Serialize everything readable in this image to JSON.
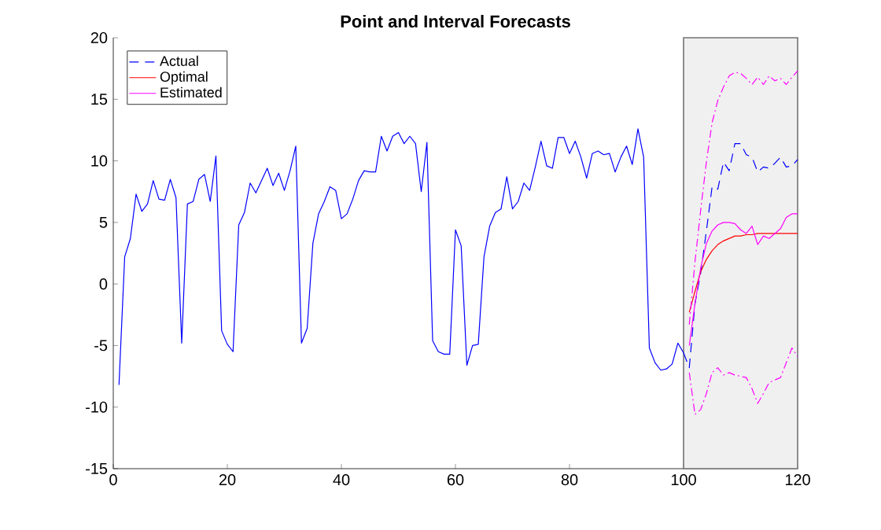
{
  "chart_data": {
    "type": "line",
    "title": "Point and Interval Forecasts",
    "xlim": [
      0,
      120
    ],
    "ylim": [
      -15,
      20
    ],
    "xticks": [
      0,
      20,
      40,
      60,
      80,
      100,
      120
    ],
    "yticks": [
      -15,
      -10,
      -5,
      0,
      5,
      10,
      15,
      20
    ],
    "legend": "top left",
    "grid": false,
    "bands": [
      {
        "axis": "x",
        "from": 100,
        "to": 120,
        "color": "#f0f0f0"
      }
    ],
    "series": [
      {
        "color": "#0000ff",
        "line_style": "solid",
        "x": [
          1,
          2,
          3,
          4,
          5,
          6,
          7,
          8,
          9,
          10,
          11,
          12,
          13,
          14,
          15,
          16,
          17,
          18,
          19,
          20,
          21,
          22,
          23,
          24,
          25,
          26,
          27,
          28,
          29,
          30,
          31,
          32,
          33,
          34,
          35,
          36,
          37,
          38,
          39,
          40,
          41,
          42,
          43,
          44,
          45,
          46,
          47,
          48,
          49,
          50,
          51,
          52,
          53,
          54,
          55,
          56,
          57,
          58,
          59,
          60,
          61,
          62,
          63,
          64,
          65,
          66,
          67,
          68,
          69,
          70,
          71,
          72,
          73,
          74,
          75,
          76,
          77,
          78,
          79,
          80,
          81,
          82,
          83,
          84,
          85,
          86,
          87,
          88,
          89,
          90,
          91,
          92,
          93,
          94,
          95,
          96,
          97,
          98,
          99,
          100
        ],
        "values": [
          -8.2,
          2.2,
          3.7,
          7.3,
          5.9,
          6.5,
          8.4,
          6.9,
          6.8,
          8.5,
          7.0,
          -4.8,
          6.5,
          6.7,
          8.5,
          8.9,
          6.7,
          10.4,
          -3.8,
          -4.9,
          -5.5,
          4.8,
          5.8,
          8.2,
          7.4,
          8.4,
          9.4,
          8.0,
          9.0,
          7.6,
          9.2,
          11.2,
          -4.8,
          -3.6,
          3.3,
          5.7,
          6.7,
          7.9,
          7.6,
          5.3,
          5.7,
          6.9,
          8.4,
          9.2,
          9.1,
          9.1,
          12.0,
          10.8,
          12.0,
          12.3,
          11.4,
          12.0,
          11.4,
          7.5,
          11.5,
          -4.6,
          -5.5,
          -5.7,
          -5.7,
          4.4,
          3.1,
          -6.6,
          -5.0,
          -4.9,
          2.2,
          4.7,
          5.8,
          6.1,
          8.7,
          6.1,
          6.7,
          8.2,
          7.6,
          9.5,
          11.6,
          9.6,
          9.4,
          11.9,
          11.9,
          10.6,
          11.6,
          10.3,
          8.6,
          10.6,
          10.8,
          10.5,
          10.6,
          9.1,
          10.3,
          11.2,
          9.7,
          12.6,
          10.3,
          -5.2,
          -6.4,
          -7.0,
          -6.9,
          -6.5,
          -4.8,
          -5.6
        ]
      },
      {
        "name": "Actual",
        "color": "#0000ff",
        "line_style": "dashed",
        "x": [
          100,
          101,
          102,
          103,
          104,
          105,
          106,
          107,
          108,
          109,
          110,
          111,
          112,
          113,
          114,
          115,
          116,
          117,
          118,
          119,
          120
        ],
        "values": [
          -5.6,
          -6.8,
          -1.6,
          0.9,
          4.3,
          7.9,
          7.7,
          9.9,
          9.2,
          11.4,
          11.4,
          10.5,
          10.3,
          9.1,
          9.5,
          9.4,
          9.8,
          10.3,
          9.5,
          9.6,
          10.1
        ]
      },
      {
        "name": "Optimal",
        "color": "#ff0000",
        "line_style": "solid",
        "x": [
          101,
          102,
          103,
          104,
          105,
          106,
          107,
          108,
          109,
          110,
          111,
          112,
          113,
          114,
          115,
          116,
          117,
          118,
          119,
          120
        ],
        "values": [
          -2.3,
          -0.6,
          1.0,
          2.0,
          2.7,
          3.2,
          3.5,
          3.7,
          3.9,
          3.9,
          4.0,
          4.0,
          4.1,
          4.1,
          4.1,
          4.1,
          4.1,
          4.1,
          4.1,
          4.1
        ]
      },
      {
        "name": "Estimated",
        "color": "#ff00ff",
        "line_style": "solid",
        "x": [
          101,
          102,
          103,
          104,
          105,
          106,
          107,
          108,
          109,
          110,
          111,
          112,
          113,
          114,
          115,
          116,
          117,
          118,
          119,
          120
        ],
        "values": [
          -5.0,
          -1.6,
          1.3,
          3.3,
          4.3,
          4.8,
          5.0,
          5.0,
          4.9,
          4.4,
          4.1,
          4.7,
          3.2,
          3.9,
          3.7,
          4.1,
          4.5,
          5.4,
          5.7,
          5.7
        ]
      },
      {
        "color": "#ff00ff",
        "line_style": "dashdot",
        "x": [
          101,
          102,
          103,
          104,
          105,
          106,
          107,
          108,
          109,
          110,
          111,
          112,
          113,
          114,
          115,
          116,
          117,
          118,
          119,
          120
        ],
        "values": [
          -3.3,
          1.8,
          6.0,
          9.9,
          13.1,
          14.9,
          16.0,
          16.9,
          17.2,
          17.1,
          16.7,
          16.2,
          16.8,
          16.2,
          16.9,
          16.5,
          16.7,
          16.2,
          16.8,
          17.3
        ]
      },
      {
        "color": "#ff00ff",
        "line_style": "dashdot",
        "x": [
          101,
          102,
          103,
          104,
          105,
          106,
          107,
          108,
          109,
          110,
          111,
          112,
          113,
          114,
          115,
          116,
          117,
          118,
          119,
          120
        ],
        "values": [
          -7.2,
          -10.6,
          -10.2,
          -8.9,
          -7.2,
          -6.8,
          -7.4,
          -7.2,
          -7.4,
          -7.5,
          -7.6,
          -8.5,
          -9.7,
          -8.9,
          -8.0,
          -7.8,
          -7.6,
          -6.4,
          -5.2,
          -5.9
        ]
      }
    ]
  }
}
